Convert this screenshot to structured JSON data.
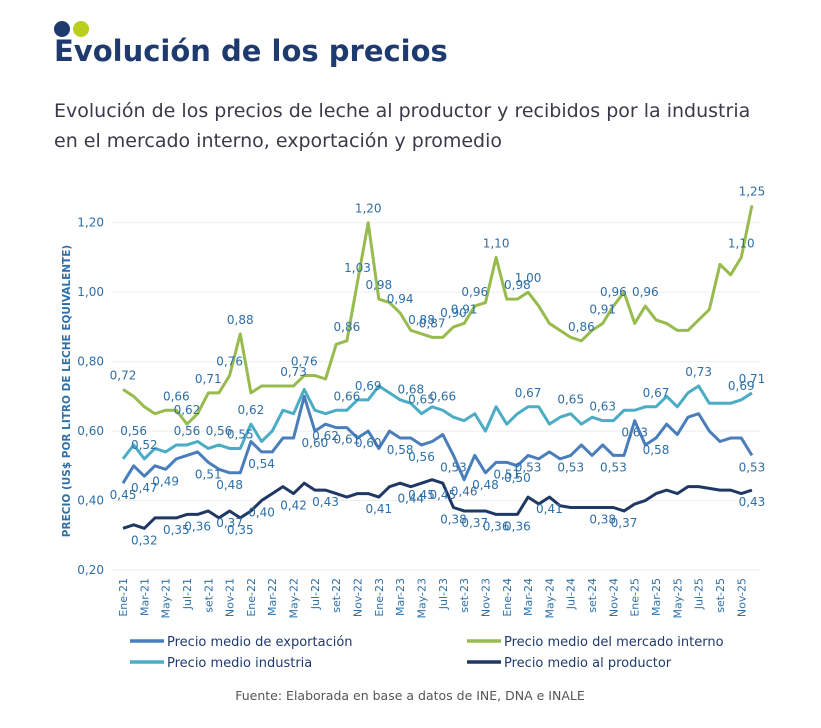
{
  "header": {
    "title": "Evolución de los precios",
    "subtitle": "Evolución de los precios de leche al productor y recibidos por la industria en el mercado interno, exportación y promedio"
  },
  "chart_data": {
    "type": "line",
    "y_label": "PRECIO (US$ POR LITRO DE LECHE EQUIVALENTE)",
    "source": "Fuente: Elaborada en base a datos de INE, DNA e INALE",
    "categories": [
      "Ene-21",
      null,
      "Mar-21",
      null,
      "May-21",
      null,
      "Jul-21",
      null,
      "set-21",
      null,
      "Nov-21",
      null,
      "Ene-22",
      null,
      "Mar-22",
      null,
      "May-22",
      null,
      "Jul-22",
      null,
      "set-22",
      null,
      "Nov-22",
      null,
      "Ene-23",
      null,
      "Mar-23",
      null,
      "May-23",
      null,
      "Jul-23",
      null,
      "set-23",
      null,
      "Nov-23",
      null,
      "Ene-24",
      null,
      "Mar-24",
      null,
      "May-24",
      null,
      "Jul-24",
      null,
      "set-24",
      null,
      "Nov-24",
      null,
      "Ene-25",
      null,
      "Mar-25",
      null,
      "May-25",
      null,
      "Jul-25",
      null,
      "set-25",
      null,
      "Nov-25",
      null
    ],
    "ylim": [
      0.2,
      1.3
    ],
    "yticks": [
      {
        "value": 0.2,
        "label": "0,20"
      },
      {
        "value": 0.4,
        "label": "0,40"
      },
      {
        "value": 0.6,
        "label": "0,60"
      },
      {
        "value": 0.8,
        "label": "0,80"
      },
      {
        "value": 1.0,
        "label": "1,00"
      },
      {
        "value": 1.2,
        "label": "1,20"
      }
    ],
    "series": [
      {
        "name": "Precio medio de exportación",
        "color": "#4a7ebb",
        "label_pos": "below",
        "values": [
          0.45,
          0.5,
          0.47,
          0.5,
          0.49,
          0.52,
          0.53,
          0.54,
          0.51,
          0.49,
          0.48,
          0.48,
          0.57,
          0.54,
          0.54,
          0.58,
          0.58,
          0.7,
          0.6,
          0.62,
          0.61,
          0.61,
          0.58,
          0.6,
          0.55,
          0.6,
          0.58,
          0.58,
          0.56,
          0.57,
          0.59,
          0.53,
          0.46,
          0.53,
          0.48,
          0.51,
          0.51,
          0.5,
          0.53,
          0.52,
          0.54,
          0.52,
          0.53,
          0.56,
          0.53,
          0.56,
          0.53,
          0.53,
          0.63,
          0.56,
          0.58,
          0.62,
          0.59,
          0.64,
          0.65,
          0.6,
          0.57,
          0.58,
          0.58,
          0.53
        ],
        "value_labels": [
          "0,45",
          null,
          "0,47",
          null,
          "0,49",
          null,
          null,
          null,
          "0,51",
          null,
          "0,48",
          null,
          null,
          "0,54",
          null,
          null,
          null,
          null,
          "0,60",
          "0,62",
          null,
          "0,61",
          null,
          "0,60",
          null,
          null,
          "0,58",
          null,
          "0,56",
          null,
          null,
          "0,53",
          "0,46",
          null,
          "0,48",
          null,
          "0,51",
          "0,50",
          "0,53",
          null,
          null,
          null,
          "0,53",
          null,
          null,
          null,
          "0,53",
          null,
          "0,63",
          null,
          "0,58",
          null,
          null,
          null,
          null,
          null,
          null,
          null,
          null,
          "0,53"
        ]
      },
      {
        "name": "Precio medio del mercado interno",
        "color": "#97bb4d",
        "label_pos": "above",
        "values": [
          0.72,
          0.7,
          0.67,
          0.65,
          0.66,
          0.66,
          0.62,
          0.65,
          0.71,
          0.71,
          0.76,
          0.88,
          0.71,
          0.73,
          0.73,
          0.73,
          0.73,
          0.76,
          0.76,
          0.75,
          0.85,
          0.86,
          1.03,
          1.2,
          0.98,
          0.97,
          0.94,
          0.89,
          0.88,
          0.87,
          0.87,
          0.9,
          0.91,
          0.96,
          0.97,
          1.1,
          0.98,
          0.98,
          1.0,
          0.96,
          0.91,
          0.89,
          0.87,
          0.86,
          0.89,
          0.91,
          0.96,
          1.0,
          0.91,
          0.96,
          0.92,
          0.91,
          0.89,
          0.89,
          0.92,
          0.95,
          1.08,
          1.05,
          1.1,
          1.25
        ],
        "value_labels": [
          "0,72",
          null,
          null,
          null,
          null,
          "0,66",
          "0,62",
          null,
          "0,71",
          null,
          "0,76",
          "0,88",
          null,
          null,
          null,
          null,
          "0,73",
          "0,76",
          null,
          null,
          null,
          "0,86",
          "1,03",
          "1,20",
          "0,98",
          null,
          "0,94",
          null,
          "0,88",
          "0,87",
          null,
          "0,90",
          "0,91",
          "0,96",
          null,
          "1,10",
          null,
          "0,98",
          "1,00",
          null,
          null,
          null,
          null,
          "0,86",
          null,
          "0,91",
          "0,96",
          null,
          null,
          "0,96",
          null,
          null,
          null,
          null,
          null,
          null,
          null,
          null,
          "1,10",
          "1,25"
        ]
      },
      {
        "name": "Precio medio industria",
        "color": "#4bacc6",
        "label_pos": "above",
        "values": [
          0.52,
          0.56,
          0.52,
          0.55,
          0.54,
          0.56,
          0.56,
          0.57,
          0.55,
          0.56,
          0.55,
          0.55,
          0.62,
          0.57,
          0.6,
          0.66,
          0.65,
          0.72,
          0.66,
          0.65,
          0.66,
          0.66,
          0.69,
          0.69,
          0.73,
          0.71,
          0.69,
          0.68,
          0.65,
          0.67,
          0.66,
          0.64,
          0.63,
          0.65,
          0.6,
          0.67,
          0.62,
          0.65,
          0.67,
          0.67,
          0.62,
          0.64,
          0.65,
          0.62,
          0.64,
          0.63,
          0.63,
          0.66,
          0.66,
          0.67,
          0.67,
          0.7,
          0.67,
          0.71,
          0.73,
          0.68,
          0.68,
          0.68,
          0.69,
          0.71
        ],
        "value_labels": [
          null,
          "0,56",
          "0,52",
          null,
          null,
          null,
          "0,56",
          null,
          null,
          "0,56",
          null,
          "0,55",
          "0,62",
          null,
          null,
          null,
          null,
          null,
          null,
          null,
          null,
          "0,66",
          null,
          "0,69",
          null,
          null,
          null,
          "0,68",
          "0,65",
          null,
          "0,66",
          null,
          null,
          null,
          null,
          null,
          null,
          null,
          "0,67",
          null,
          null,
          null,
          "0,65",
          null,
          null,
          "0,63",
          null,
          null,
          null,
          null,
          "0,67",
          null,
          null,
          null,
          "0,73",
          null,
          null,
          null,
          "0,69",
          "0,71"
        ]
      },
      {
        "name": "Precio medio al productor",
        "color": "#203864",
        "label_pos": "below",
        "values": [
          0.32,
          0.33,
          0.32,
          0.35,
          0.35,
          0.35,
          0.36,
          0.36,
          0.37,
          0.35,
          0.37,
          0.35,
          0.37,
          0.4,
          0.42,
          0.44,
          0.42,
          0.45,
          0.43,
          0.43,
          0.42,
          0.41,
          0.42,
          0.42,
          0.41,
          0.44,
          0.45,
          0.44,
          0.45,
          0.46,
          0.45,
          0.38,
          0.37,
          0.37,
          0.37,
          0.36,
          0.36,
          0.36,
          0.41,
          0.39,
          0.41,
          0.385,
          0.38,
          0.38,
          0.38,
          0.38,
          0.38,
          0.37,
          0.39,
          0.4,
          0.42,
          0.43,
          0.42,
          0.44,
          0.44,
          0.435,
          0.43,
          0.43,
          0.42,
          0.43
        ],
        "value_labels": [
          null,
          null,
          "0,32",
          null,
          null,
          "0,35",
          null,
          "0,36",
          null,
          null,
          "0,37",
          "0,35",
          null,
          "0,40",
          null,
          null,
          "0,42",
          null,
          null,
          "0,43",
          null,
          null,
          null,
          null,
          "0,41",
          null,
          null,
          "0,44",
          "0,45",
          null,
          "0,45",
          "0,38",
          null,
          "0,37",
          null,
          "0,36",
          null,
          "0,36",
          null,
          null,
          "0,41",
          null,
          null,
          null,
          null,
          "0,38",
          null,
          "0,37",
          null,
          null,
          null,
          null,
          null,
          null,
          null,
          null,
          null,
          null,
          null,
          "0,43"
        ]
      }
    ]
  }
}
